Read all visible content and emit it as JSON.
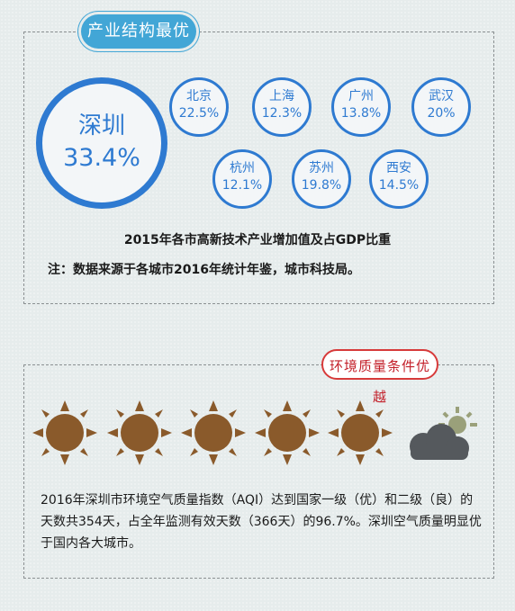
{
  "section1": {
    "tag": "产业结构最优",
    "main_city": {
      "name": "深圳",
      "value": "33.4%"
    },
    "cities": [
      {
        "name": "北京",
        "value": "22.5%"
      },
      {
        "name": "上海",
        "value": "12.3%"
      },
      {
        "name": "广州",
        "value": "13.8%"
      },
      {
        "name": "武汉",
        "value": "20%"
      },
      {
        "name": "杭州",
        "value": "12.1%"
      },
      {
        "name": "苏州",
        "value": "19.8%"
      },
      {
        "name": "西安",
        "value": "14.5%"
      }
    ],
    "caption": "2015年各市高新技术产业增加值及占GDP比重",
    "note": "注：数据来源于各城市2016年统计年鉴，城市科技局。"
  },
  "section2": {
    "tag": "环境质量条件优越",
    "icons": [
      "sun-icon",
      "sun-icon",
      "sun-icon",
      "sun-icon",
      "sun-icon",
      "cloud-sun-icon"
    ],
    "paragraph": "2016年深圳市环境空气质量指数（AQI）达到国家一级（优）和二级（良）的天数共354天，占全年监测有效天数（366天）的96.7%。深圳空气质量明显优于国内各大城市。"
  },
  "colors": {
    "accent_blue": "#2e7ad1",
    "tag_blue": "#42a6d6",
    "tag_red": "#c3202a",
    "sun_brown": "#8a5a2b"
  }
}
